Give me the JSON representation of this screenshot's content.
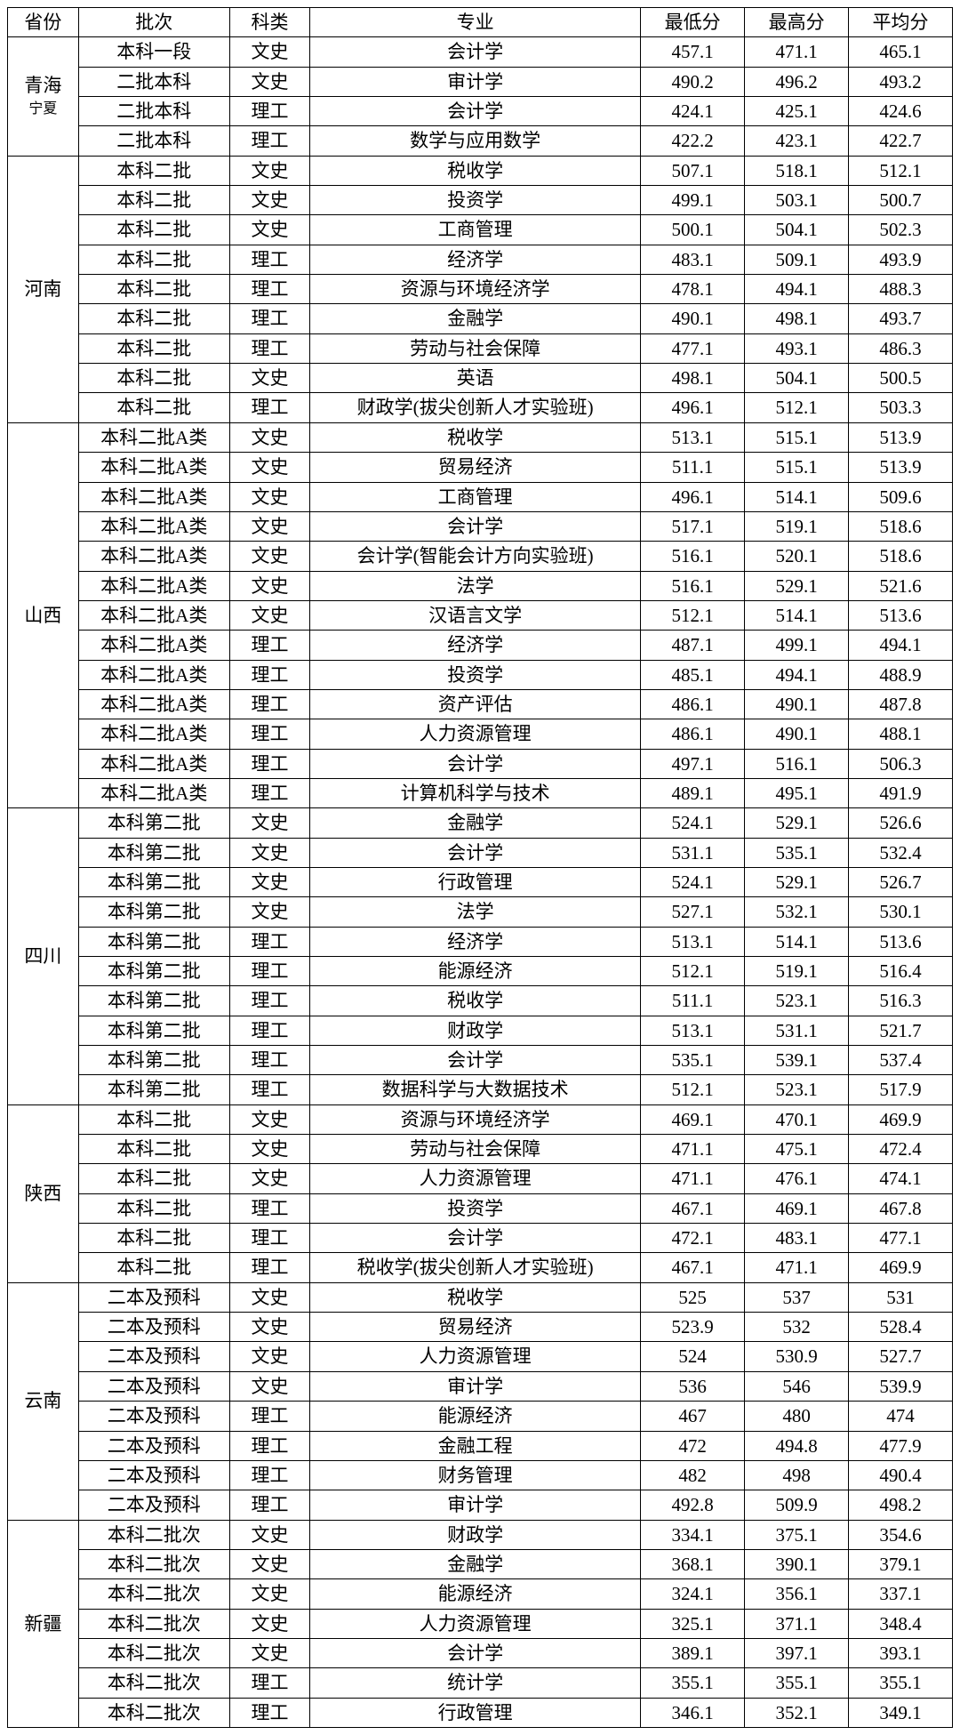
{
  "headers": {
    "province": "省份",
    "batch": "批次",
    "category": "科类",
    "major": "专业",
    "min": "最低分",
    "max": "最高分",
    "avg": "平均分"
  },
  "colors": {
    "border": "#000000",
    "background": "#ffffff",
    "text": "#000000"
  },
  "font": {
    "family": "SimSun",
    "size_pt": 16
  },
  "provinces": [
    {
      "name": "青海",
      "rows": [
        {
          "batch": "本科一段",
          "cat": "文史",
          "major": "会计学",
          "min": "457.1",
          "max": "471.1",
          "avg": "465.1"
        }
      ]
    },
    {
      "name": "宁夏",
      "rows": [
        {
          "batch": "二批本科",
          "cat": "文史",
          "major": "审计学",
          "min": "490.2",
          "max": "496.2",
          "avg": "493.2"
        },
        {
          "batch": "二批本科",
          "cat": "理工",
          "major": "会计学",
          "min": "424.1",
          "max": "425.1",
          "avg": "424.6"
        },
        {
          "batch": "二批本科",
          "cat": "理工",
          "major": "数学与应用数学",
          "min": "422.2",
          "max": "423.1",
          "avg": "422.7"
        }
      ]
    },
    {
      "name": "河南",
      "rows": [
        {
          "batch": "本科二批",
          "cat": "文史",
          "major": "税收学",
          "min": "507.1",
          "max": "518.1",
          "avg": "512.1"
        },
        {
          "batch": "本科二批",
          "cat": "文史",
          "major": "投资学",
          "min": "499.1",
          "max": "503.1",
          "avg": "500.7"
        },
        {
          "batch": "本科二批",
          "cat": "文史",
          "major": "工商管理",
          "min": "500.1",
          "max": "504.1",
          "avg": "502.3"
        },
        {
          "batch": "本科二批",
          "cat": "理工",
          "major": "经济学",
          "min": "483.1",
          "max": "509.1",
          "avg": "493.9"
        },
        {
          "batch": "本科二批",
          "cat": "理工",
          "major": "资源与环境经济学",
          "min": "478.1",
          "max": "494.1",
          "avg": "488.3"
        },
        {
          "batch": "本科二批",
          "cat": "理工",
          "major": "金融学",
          "min": "490.1",
          "max": "498.1",
          "avg": "493.7"
        },
        {
          "batch": "本科二批",
          "cat": "理工",
          "major": "劳动与社会保障",
          "min": "477.1",
          "max": "493.1",
          "avg": "486.3"
        },
        {
          "batch": "本科二批",
          "cat": "文史",
          "major": "英语",
          "min": "498.1",
          "max": "504.1",
          "avg": "500.5"
        },
        {
          "batch": "本科二批",
          "cat": "理工",
          "major": "财政学(拔尖创新人才实验班)",
          "min": "496.1",
          "max": "512.1",
          "avg": "503.3"
        }
      ]
    },
    {
      "name": "山西",
      "rows": [
        {
          "batch": "本科二批A类",
          "cat": "文史",
          "major": "税收学",
          "min": "513.1",
          "max": "515.1",
          "avg": "513.9"
        },
        {
          "batch": "本科二批A类",
          "cat": "文史",
          "major": "贸易经济",
          "min": "511.1",
          "max": "515.1",
          "avg": "513.9"
        },
        {
          "batch": "本科二批A类",
          "cat": "文史",
          "major": "工商管理",
          "min": "496.1",
          "max": "514.1",
          "avg": "509.6"
        },
        {
          "batch": "本科二批A类",
          "cat": "文史",
          "major": "会计学",
          "min": "517.1",
          "max": "519.1",
          "avg": "518.6"
        },
        {
          "batch": "本科二批A类",
          "cat": "文史",
          "major": "会计学(智能会计方向实验班)",
          "min": "516.1",
          "max": "520.1",
          "avg": "518.6"
        },
        {
          "batch": "本科二批A类",
          "cat": "文史",
          "major": "法学",
          "min": "516.1",
          "max": "529.1",
          "avg": "521.6"
        },
        {
          "batch": "本科二批A类",
          "cat": "文史",
          "major": "汉语言文学",
          "min": "512.1",
          "max": "514.1",
          "avg": "513.6"
        },
        {
          "batch": "本科二批A类",
          "cat": "理工",
          "major": "经济学",
          "min": "487.1",
          "max": "499.1",
          "avg": "494.1"
        },
        {
          "batch": "本科二批A类",
          "cat": "理工",
          "major": "投资学",
          "min": "485.1",
          "max": "494.1",
          "avg": "488.9"
        },
        {
          "batch": "本科二批A类",
          "cat": "理工",
          "major": "资产评估",
          "min": "486.1",
          "max": "490.1",
          "avg": "487.8"
        },
        {
          "batch": "本科二批A类",
          "cat": "理工",
          "major": "人力资源管理",
          "min": "486.1",
          "max": "490.1",
          "avg": "488.1"
        },
        {
          "batch": "本科二批A类",
          "cat": "理工",
          "major": "会计学",
          "min": "497.1",
          "max": "516.1",
          "avg": "506.3"
        },
        {
          "batch": "本科二批A类",
          "cat": "理工",
          "major": "计算机科学与技术",
          "min": "489.1",
          "max": "495.1",
          "avg": "491.9"
        }
      ]
    },
    {
      "name": "四川",
      "rows": [
        {
          "batch": "本科第二批",
          "cat": "文史",
          "major": "金融学",
          "min": "524.1",
          "max": "529.1",
          "avg": "526.6"
        },
        {
          "batch": "本科第二批",
          "cat": "文史",
          "major": "会计学",
          "min": "531.1",
          "max": "535.1",
          "avg": "532.4"
        },
        {
          "batch": "本科第二批",
          "cat": "文史",
          "major": "行政管理",
          "min": "524.1",
          "max": "529.1",
          "avg": "526.7"
        },
        {
          "batch": "本科第二批",
          "cat": "文史",
          "major": "法学",
          "min": "527.1",
          "max": "532.1",
          "avg": "530.1"
        },
        {
          "batch": "本科第二批",
          "cat": "理工",
          "major": "经济学",
          "min": "513.1",
          "max": "514.1",
          "avg": "513.6"
        },
        {
          "batch": "本科第二批",
          "cat": "理工",
          "major": "能源经济",
          "min": "512.1",
          "max": "519.1",
          "avg": "516.4"
        },
        {
          "batch": "本科第二批",
          "cat": "理工",
          "major": "税收学",
          "min": "511.1",
          "max": "523.1",
          "avg": "516.3"
        },
        {
          "batch": "本科第二批",
          "cat": "理工",
          "major": "财政学",
          "min": "513.1",
          "max": "531.1",
          "avg": "521.7"
        },
        {
          "batch": "本科第二批",
          "cat": "理工",
          "major": "会计学",
          "min": "535.1",
          "max": "539.1",
          "avg": "537.4"
        },
        {
          "batch": "本科第二批",
          "cat": "理工",
          "major": "数据科学与大数据技术",
          "min": "512.1",
          "max": "523.1",
          "avg": "517.9"
        }
      ]
    },
    {
      "name": "陕西",
      "rows": [
        {
          "batch": "本科二批",
          "cat": "文史",
          "major": "资源与环境经济学",
          "min": "469.1",
          "max": "470.1",
          "avg": "469.9"
        },
        {
          "batch": "本科二批",
          "cat": "文史",
          "major": "劳动与社会保障",
          "min": "471.1",
          "max": "475.1",
          "avg": "472.4"
        },
        {
          "batch": "本科二批",
          "cat": "文史",
          "major": "人力资源管理",
          "min": "471.1",
          "max": "476.1",
          "avg": "474.1"
        },
        {
          "batch": "本科二批",
          "cat": "理工",
          "major": "投资学",
          "min": "467.1",
          "max": "469.1",
          "avg": "467.8"
        },
        {
          "batch": "本科二批",
          "cat": "理工",
          "major": "会计学",
          "min": "472.1",
          "max": "483.1",
          "avg": "477.1"
        },
        {
          "batch": "本科二批",
          "cat": "理工",
          "major": "税收学(拔尖创新人才实验班)",
          "min": "467.1",
          "max": "471.1",
          "avg": "469.9"
        }
      ]
    },
    {
      "name": "云南",
      "rows": [
        {
          "batch": "二本及预科",
          "cat": "文史",
          "major": "税收学",
          "min": "525",
          "max": "537",
          "avg": "531"
        },
        {
          "batch": "二本及预科",
          "cat": "文史",
          "major": "贸易经济",
          "min": "523.9",
          "max": "532",
          "avg": "528.4"
        },
        {
          "batch": "二本及预科",
          "cat": "文史",
          "major": "人力资源管理",
          "min": "524",
          "max": "530.9",
          "avg": "527.7"
        },
        {
          "batch": "二本及预科",
          "cat": "文史",
          "major": "审计学",
          "min": "536",
          "max": "546",
          "avg": "539.9"
        },
        {
          "batch": "二本及预科",
          "cat": "理工",
          "major": "能源经济",
          "min": "467",
          "max": "480",
          "avg": "474"
        },
        {
          "batch": "二本及预科",
          "cat": "理工",
          "major": "金融工程",
          "min": "472",
          "max": "494.8",
          "avg": "477.9"
        },
        {
          "batch": "二本及预科",
          "cat": "理工",
          "major": "财务管理",
          "min": "482",
          "max": "498",
          "avg": "490.4"
        },
        {
          "batch": "二本及预科",
          "cat": "理工",
          "major": "审计学",
          "min": "492.8",
          "max": "509.9",
          "avg": "498.2"
        }
      ]
    },
    {
      "name": "新疆",
      "rows": [
        {
          "batch": "本科二批次",
          "cat": "文史",
          "major": "财政学",
          "min": "334.1",
          "max": "375.1",
          "avg": "354.6"
        },
        {
          "batch": "本科二批次",
          "cat": "文史",
          "major": "金融学",
          "min": "368.1",
          "max": "390.1",
          "avg": "379.1"
        },
        {
          "batch": "本科二批次",
          "cat": "文史",
          "major": "能源经济",
          "min": "324.1",
          "max": "356.1",
          "avg": "337.1"
        },
        {
          "batch": "本科二批次",
          "cat": "文史",
          "major": "人力资源管理",
          "min": "325.1",
          "max": "371.1",
          "avg": "348.4"
        },
        {
          "batch": "本科二批次",
          "cat": "文史",
          "major": "会计学",
          "min": "389.1",
          "max": "397.1",
          "avg": "393.1"
        },
        {
          "batch": "本科二批次",
          "cat": "理工",
          "major": "统计学",
          "min": "355.1",
          "max": "355.1",
          "avg": "355.1"
        },
        {
          "batch": "本科二批次",
          "cat": "理工",
          "major": "行政管理",
          "min": "346.1",
          "max": "352.1",
          "avg": "349.1"
        }
      ]
    }
  ]
}
